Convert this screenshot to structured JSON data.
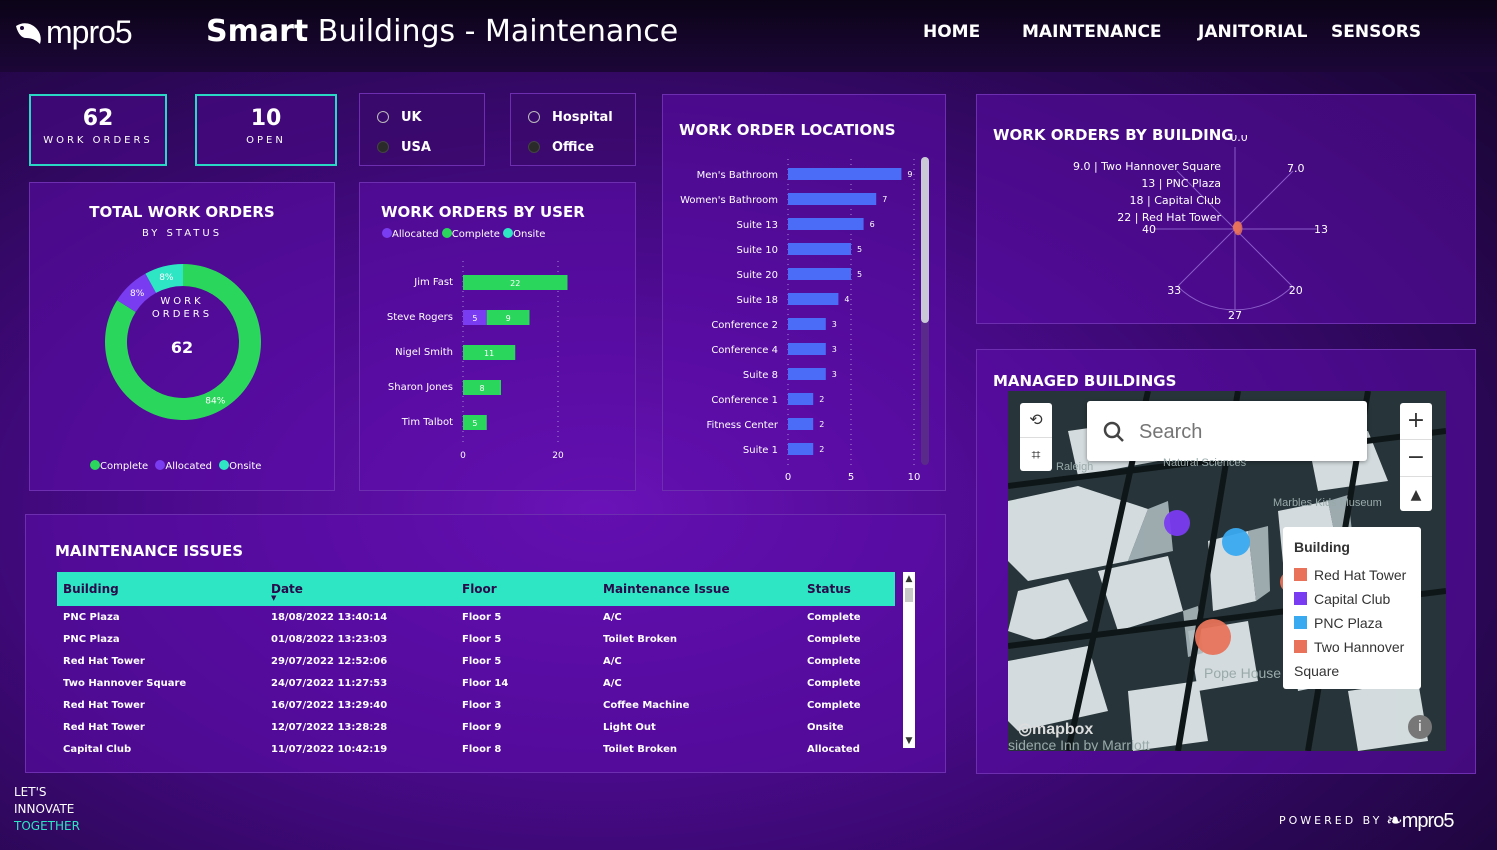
{
  "header": {
    "logo_text": "mpro5",
    "title_bold": "Smart",
    "title_rest": "Buildings - Maintenance",
    "nav": [
      "HOME",
      "MAINTENANCE",
      "JANITORIAL",
      "SENSORS"
    ]
  },
  "kpis": [
    {
      "value": "62",
      "label": "WORK ORDERS"
    },
    {
      "value": "10",
      "label": "OPEN"
    }
  ],
  "region_filter": [
    "UK",
    "USA"
  ],
  "type_filter": [
    "Hospital",
    "Office"
  ],
  "total_orders": {
    "title": "TOTAL WORK ORDERS",
    "subtitle": "BY STATUS",
    "center_label_1": "WORK",
    "center_label_2": "ORDERS",
    "center_value": "62",
    "legend": [
      "Complete",
      "Allocated",
      "Onsite"
    ],
    "colors": {
      "Complete": "#2bd65c",
      "Allocated": "#7a3cf0",
      "Onsite": "#2ee6c4"
    }
  },
  "by_user": {
    "title": "WORK ORDERS BY USER",
    "legend": [
      "Allocated",
      "Complete",
      "Onsite"
    ]
  },
  "locations": {
    "title": "WORK ORDER LOCATIONS"
  },
  "by_building": {
    "title": "WORK ORDERS BY BUILDING"
  },
  "chart_data": [
    {
      "type": "pie",
      "title": "TOTAL WORK ORDERS",
      "categories": [
        "Complete",
        "Allocated",
        "Onsite"
      ],
      "values": [
        84,
        8,
        8
      ],
      "labels": [
        "84%",
        "8%",
        "8%"
      ]
    },
    {
      "type": "bar",
      "title": "WORK ORDERS BY USER",
      "categories": [
        "Jim Fast",
        "Steve Rogers",
        "Nigel Smith",
        "Sharon Jones",
        "Tim Talbot"
      ],
      "series": [
        {
          "name": "Allocated",
          "values": [
            0,
            5,
            0,
            0,
            0
          ]
        },
        {
          "name": "Complete",
          "values": [
            22,
            9,
            11,
            8,
            5
          ]
        },
        {
          "name": "Onsite",
          "values": [
            0,
            0,
            0,
            0,
            0
          ]
        }
      ],
      "xticks": [
        "0",
        "20"
      ],
      "xlim": [
        0,
        30
      ]
    },
    {
      "type": "bar",
      "title": "WORK ORDER LOCATIONS",
      "categories": [
        "Men's Bathroom",
        "Women's Bathroom",
        "Suite 13",
        "Suite 10",
        "Suite 20",
        "Suite 18",
        "Conference 2",
        "Conference 4",
        "Suite 8",
        "Conference 1",
        "Fitness Center",
        "Suite 1"
      ],
      "values": [
        9,
        7,
        6,
        5,
        5,
        4,
        3,
        3,
        3,
        2,
        2,
        2
      ],
      "labels": [
        "9",
        "7",
        "6",
        "5",
        "5",
        "4",
        "3",
        "3",
        "3",
        "2",
        "2",
        "2"
      ],
      "xticks": [
        "0",
        "5",
        "10"
      ],
      "xlim": [
        0,
        10
      ]
    },
    {
      "type": "pie",
      "title": "WORK ORDERS BY BUILDING",
      "categories": [
        "Two Hannover Square",
        "PNC Plaza",
        "Capital Club",
        "Red Hat Tower"
      ],
      "values": [
        9.0,
        13,
        18,
        22
      ],
      "labels": [
        "9.0 | Two Hannover Square",
        "13 | PNC Plaza",
        "18 | Capital Club",
        "22 | Red Hat Tower"
      ],
      "radial_ticks": [
        "0.0",
        "7.0",
        "13",
        "20",
        "27",
        "33",
        "40"
      ]
    }
  ],
  "issues": {
    "title": "MAINTENANCE ISSUES",
    "columns": [
      "Building",
      "Date",
      "Floor",
      "Maintenance Issue",
      "Status"
    ],
    "rows": [
      [
        "PNC Plaza",
        "18/08/2022 13:40:14",
        "Floor 5",
        "A/C",
        "Complete"
      ],
      [
        "PNC Plaza",
        "01/08/2022 13:23:03",
        "Floor 5",
        "Toilet Broken",
        "Complete"
      ],
      [
        "Red Hat Tower",
        "29/07/2022 12:52:06",
        "Floor 5",
        "A/C",
        "Complete"
      ],
      [
        "Two Hannover Square",
        "24/07/2022 11:27:53",
        "Floor 14",
        "A/C",
        "Complete"
      ],
      [
        "Red Hat Tower",
        "16/07/2022 13:29:40",
        "Floor 3",
        "Coffee Machine",
        "Complete"
      ],
      [
        "Red Hat Tower",
        "12/07/2022 13:28:28",
        "Floor 9",
        "Light Out",
        "Onsite"
      ],
      [
        "Capital Club",
        "11/07/2022 10:42:19",
        "Floor 8",
        "Toilet Broken",
        "Allocated"
      ]
    ]
  },
  "map": {
    "title": "MANAGED BUILDINGS",
    "search_placeholder": "Search",
    "legend_title": "Building",
    "legend": [
      {
        "name": "Red Hat Tower",
        "color": "#e8735a"
      },
      {
        "name": "Capital Club",
        "color": "#7a3cf0"
      },
      {
        "name": "PNC Plaza",
        "color": "#3aaaf0"
      },
      {
        "name": "Two Hannover Square",
        "color": "#e8735a"
      }
    ],
    "attribution": "mapbox",
    "street_labels": [
      "Natural Sciences",
      "Marbles Kids Museum",
      "Raleigh",
      "Pope House",
      "sidence Inn by Marriott"
    ]
  },
  "footer": {
    "tag1": "LET'S",
    "tag2": "INNOVATE",
    "tag3": "TOGETHER",
    "powered": "POWERED BY",
    "brand": "mpro5"
  }
}
